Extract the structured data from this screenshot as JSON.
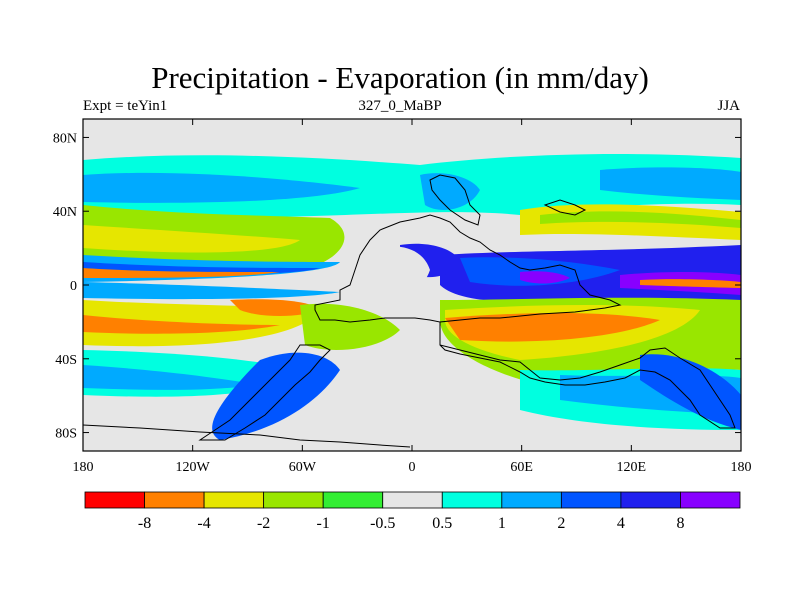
{
  "chart_data": {
    "type": "heatmap",
    "title": "Precipitation - Evaporation (in mm/day)",
    "subtitle_left": "Expt = teYin1",
    "subtitle_center": "327_0_MaBP",
    "subtitle_right": "JJA",
    "x_ticks": [
      "180",
      "120W",
      "60W",
      "0",
      "60E",
      "120E",
      "180"
    ],
    "y_ticks": [
      "80N",
      "40N",
      "0",
      "40S",
      "80S"
    ],
    "xlim": [
      -180,
      180
    ],
    "ylim": [
      -90,
      90
    ],
    "colorbar": {
      "colors": [
        "#ff0000",
        "#ff8000",
        "#e6e600",
        "#99e600",
        "#33ee33",
        "#e6e6e6",
        "#00ffe0",
        "#00aaff",
        "#0055ff",
        "#2020ee",
        "#8800ff"
      ],
      "labels": [
        "-8",
        "-4",
        "-2",
        "-1",
        "-0.5",
        "0.5",
        "1",
        "2",
        "4",
        "8"
      ]
    }
  }
}
